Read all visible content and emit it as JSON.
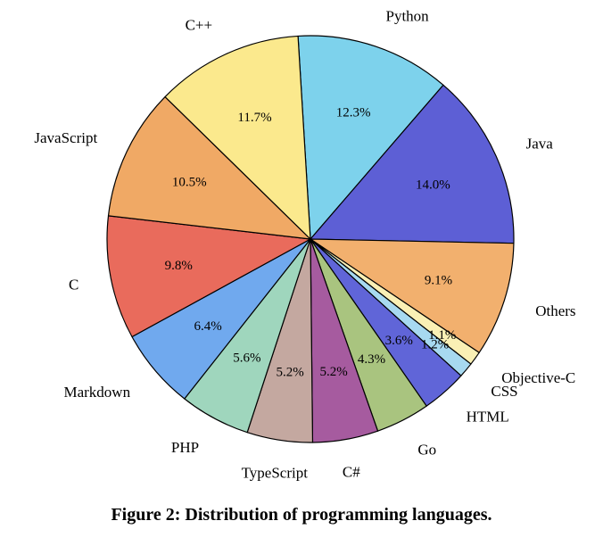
{
  "caption": "Figure 2: Distribution of programming languages.",
  "chart_data": {
    "type": "pie",
    "title": "",
    "unit": "%",
    "direction": "clockwise",
    "start_angle_deg": 93.5,
    "stroke_color": "#000000",
    "legend_position": "none",
    "slices": [
      {
        "label": "Python",
        "value": 12.3,
        "color": "#7DD2EC"
      },
      {
        "label": "Java",
        "value": 14.0,
        "color": "#5D5FD5"
      },
      {
        "label": "Others",
        "value": 9.1,
        "color": "#F2B06E"
      },
      {
        "label": "Objective-C",
        "value": 1.1,
        "color": "#FAF0B5",
        "pct_r": 0.8
      },
      {
        "label": "CSS",
        "value": 1.2,
        "color": "#A7D9F0",
        "pct_r": 0.8
      },
      {
        "label": "HTML",
        "value": 3.6,
        "color": "#6065D8"
      },
      {
        "label": "Go",
        "value": 4.3,
        "color": "#A9C47F"
      },
      {
        "label": "C#",
        "value": 5.2,
        "color": "#A65B9F"
      },
      {
        "label": "TypeScript",
        "value": 5.2,
        "color": "#C4A8A0"
      },
      {
        "label": "PHP",
        "value": 5.6,
        "color": "#9FD6BD"
      },
      {
        "label": "Markdown",
        "value": 6.4,
        "color": "#70A9EE"
      },
      {
        "label": "C",
        "value": 9.8,
        "color": "#E96B5C"
      },
      {
        "label": "JavaScript",
        "value": 10.5,
        "color": "#F0A965"
      },
      {
        "label": "C++",
        "value": 11.7,
        "color": "#FBE98D"
      }
    ]
  }
}
